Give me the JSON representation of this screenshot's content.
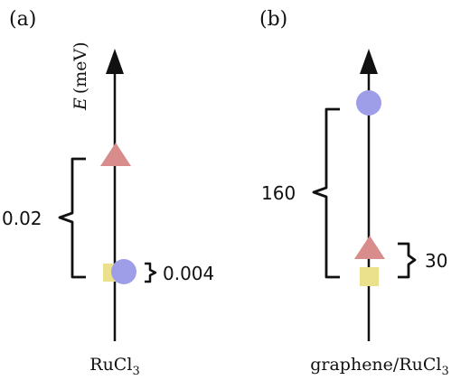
{
  "panels": [
    {
      "tag": "(a)",
      "axis_label_italic": "E",
      "axis_label_unit": "(meV)",
      "material": {
        "base": "RuCl",
        "subscript": "3"
      },
      "gap_large": "0.02",
      "gap_small": "0.004"
    },
    {
      "tag": "(b)",
      "material": {
        "base": "graphene/RuCl",
        "subscript": "3"
      },
      "gap_large": "160",
      "gap_small": "30"
    }
  ],
  "markers": {
    "circle_color": "#9e9ee8",
    "triangle_color": "#d98c8c",
    "square_color": "#ebe08c"
  }
}
